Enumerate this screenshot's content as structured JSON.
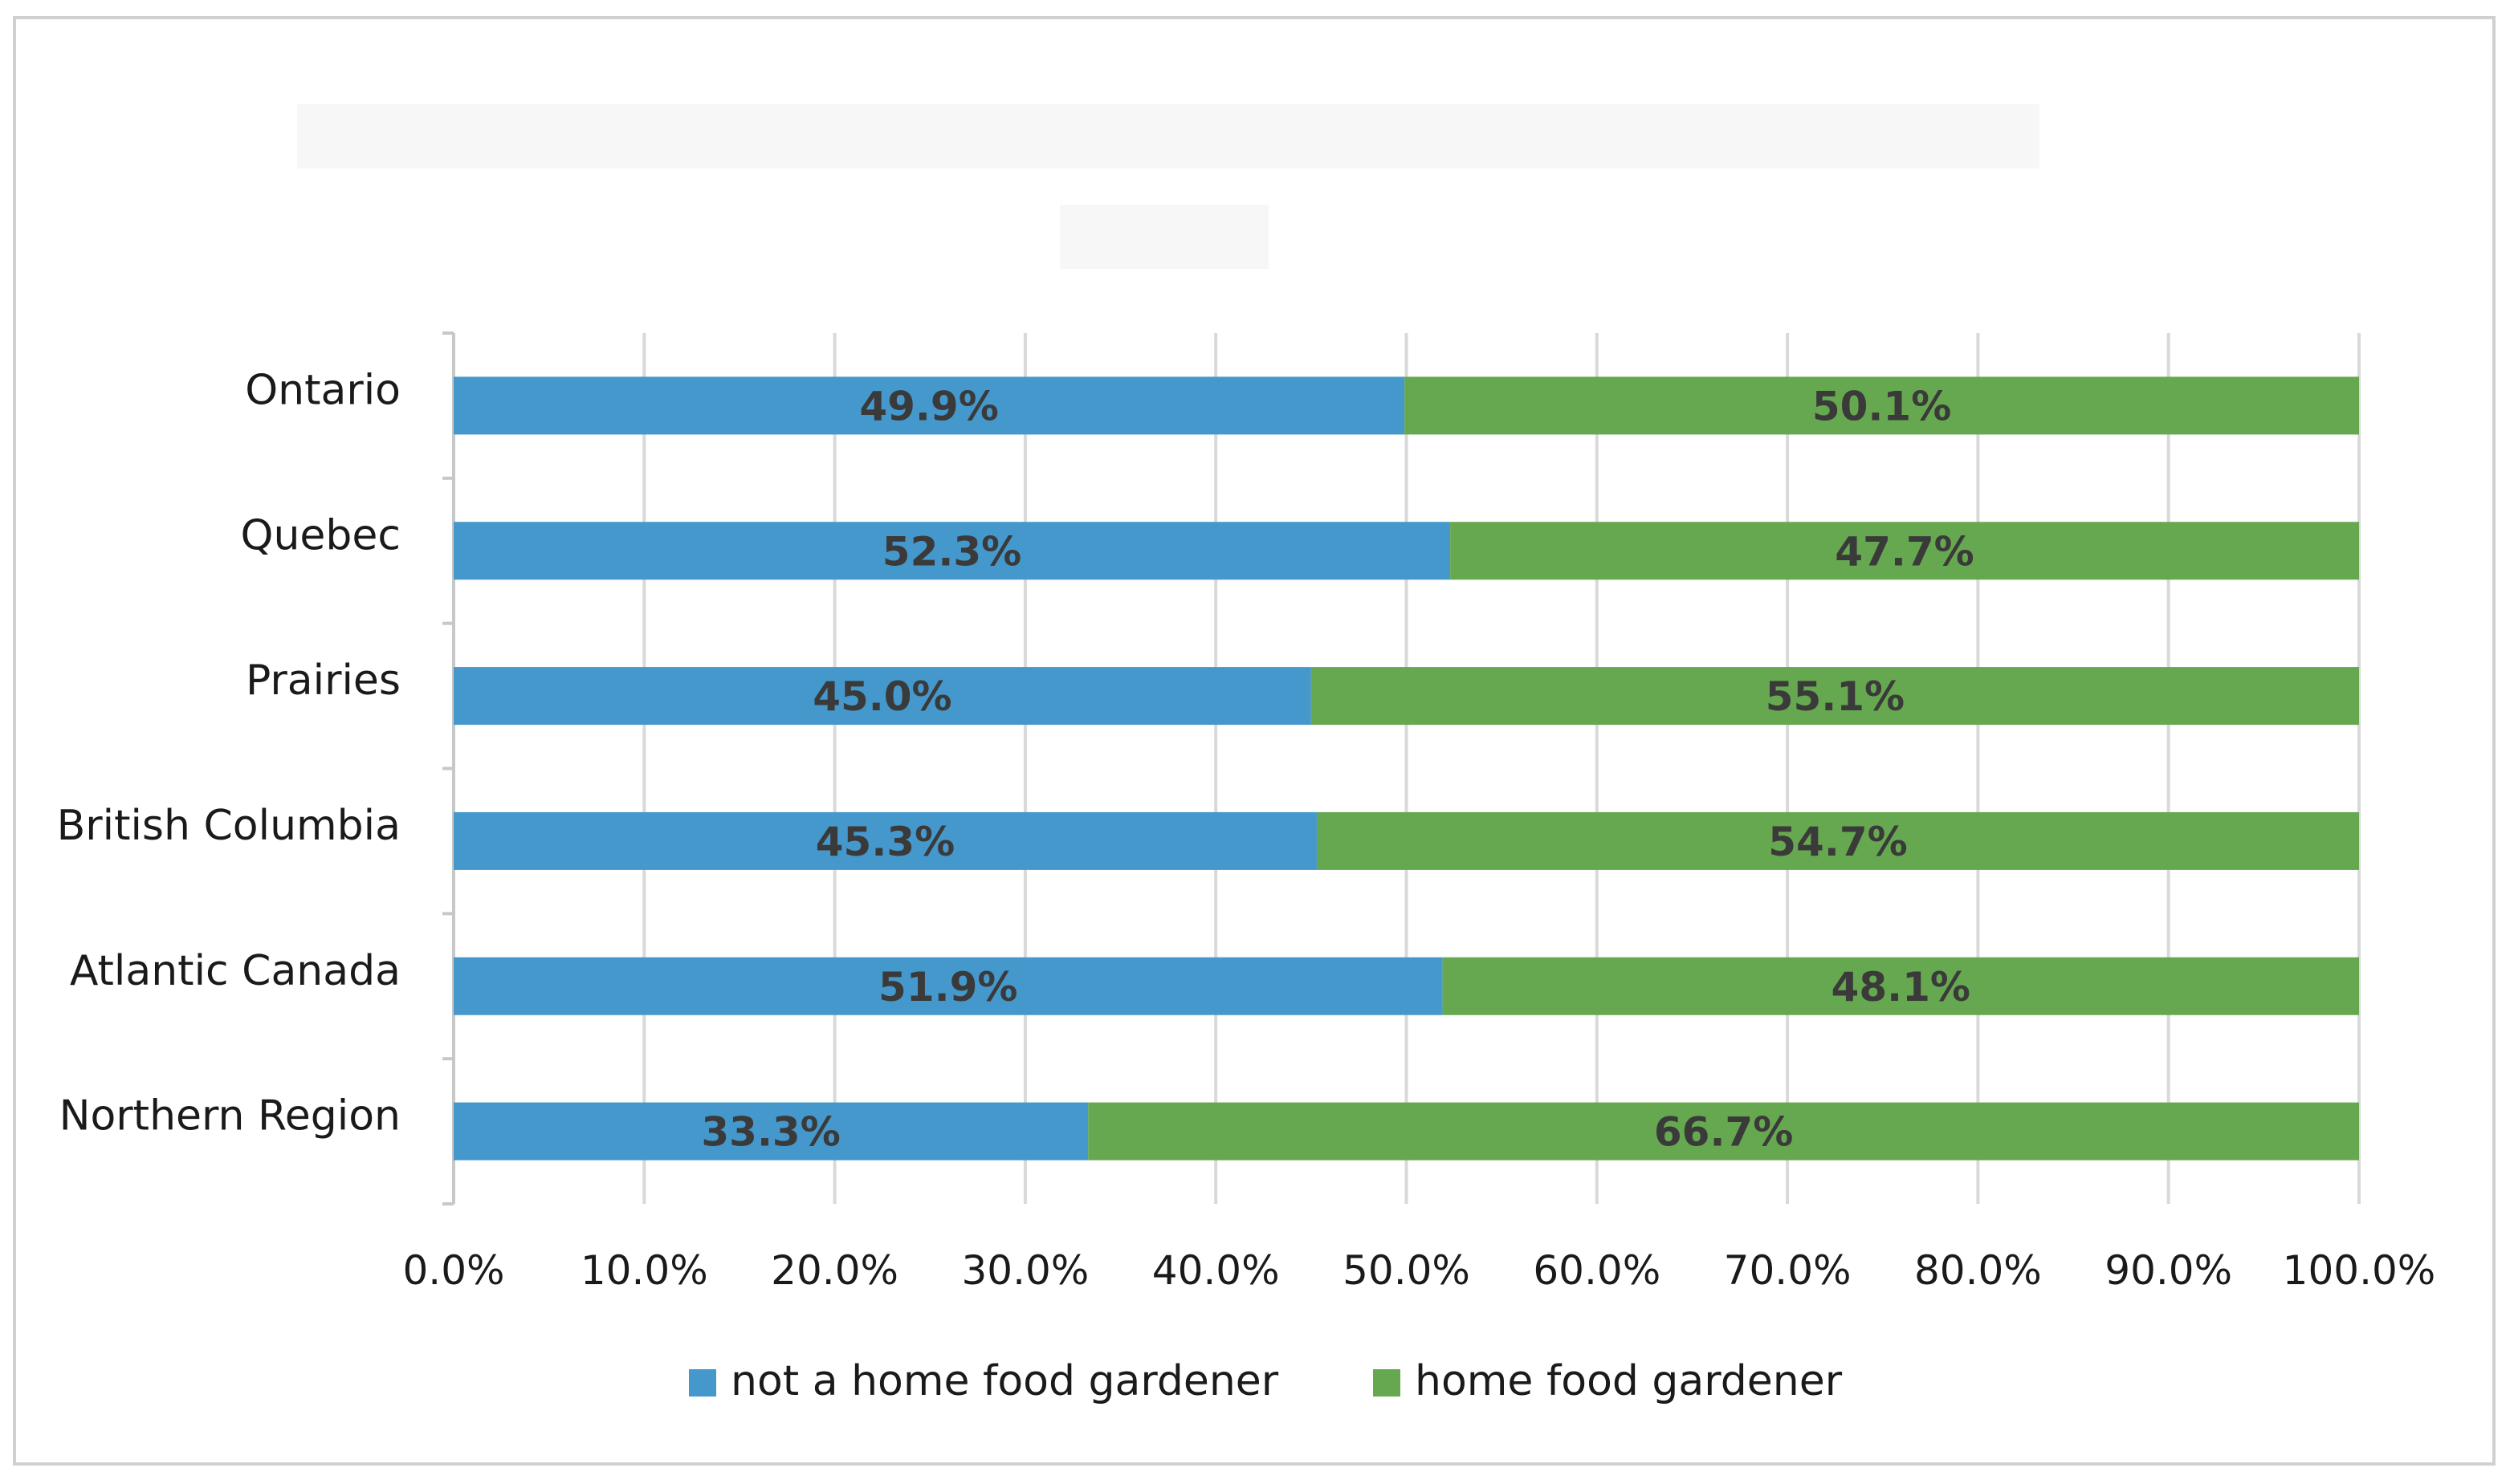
{
  "chart_data": {
    "type": "bar",
    "orientation": "horizontal",
    "stacked": true,
    "percent_stacked": true,
    "title": "",
    "xlabel": "",
    "ylabel": "",
    "xlim": [
      0,
      100
    ],
    "x_ticks": [
      "0.0%",
      "10.0%",
      "20.0%",
      "30.0%",
      "40.0%",
      "50.0%",
      "60.0%",
      "70.0%",
      "80.0%",
      "90.0%",
      "100.0%"
    ],
    "grid": true,
    "legend_position": "bottom",
    "categories": [
      "Ontario",
      "Quebec",
      "Prairies",
      "British Columbia",
      "Atlantic Canada",
      "Northern Region"
    ],
    "series": [
      {
        "name": "not a home food gardener",
        "color": "#4598cc",
        "values": [
          49.9,
          52.3,
          45.0,
          45.3,
          51.9,
          33.3
        ],
        "labels": [
          "49.9%",
          "52.3%",
          "45.0%",
          "45.3%",
          "51.9%",
          "33.3%"
        ]
      },
      {
        "name": "home food gardener",
        "color": "#66a84f",
        "values": [
          50.1,
          47.7,
          55.1,
          54.7,
          48.1,
          66.7
        ],
        "labels": [
          "50.1%",
          "47.7%",
          "55.1%",
          "54.7%",
          "48.1%",
          "66.7%"
        ]
      }
    ]
  }
}
